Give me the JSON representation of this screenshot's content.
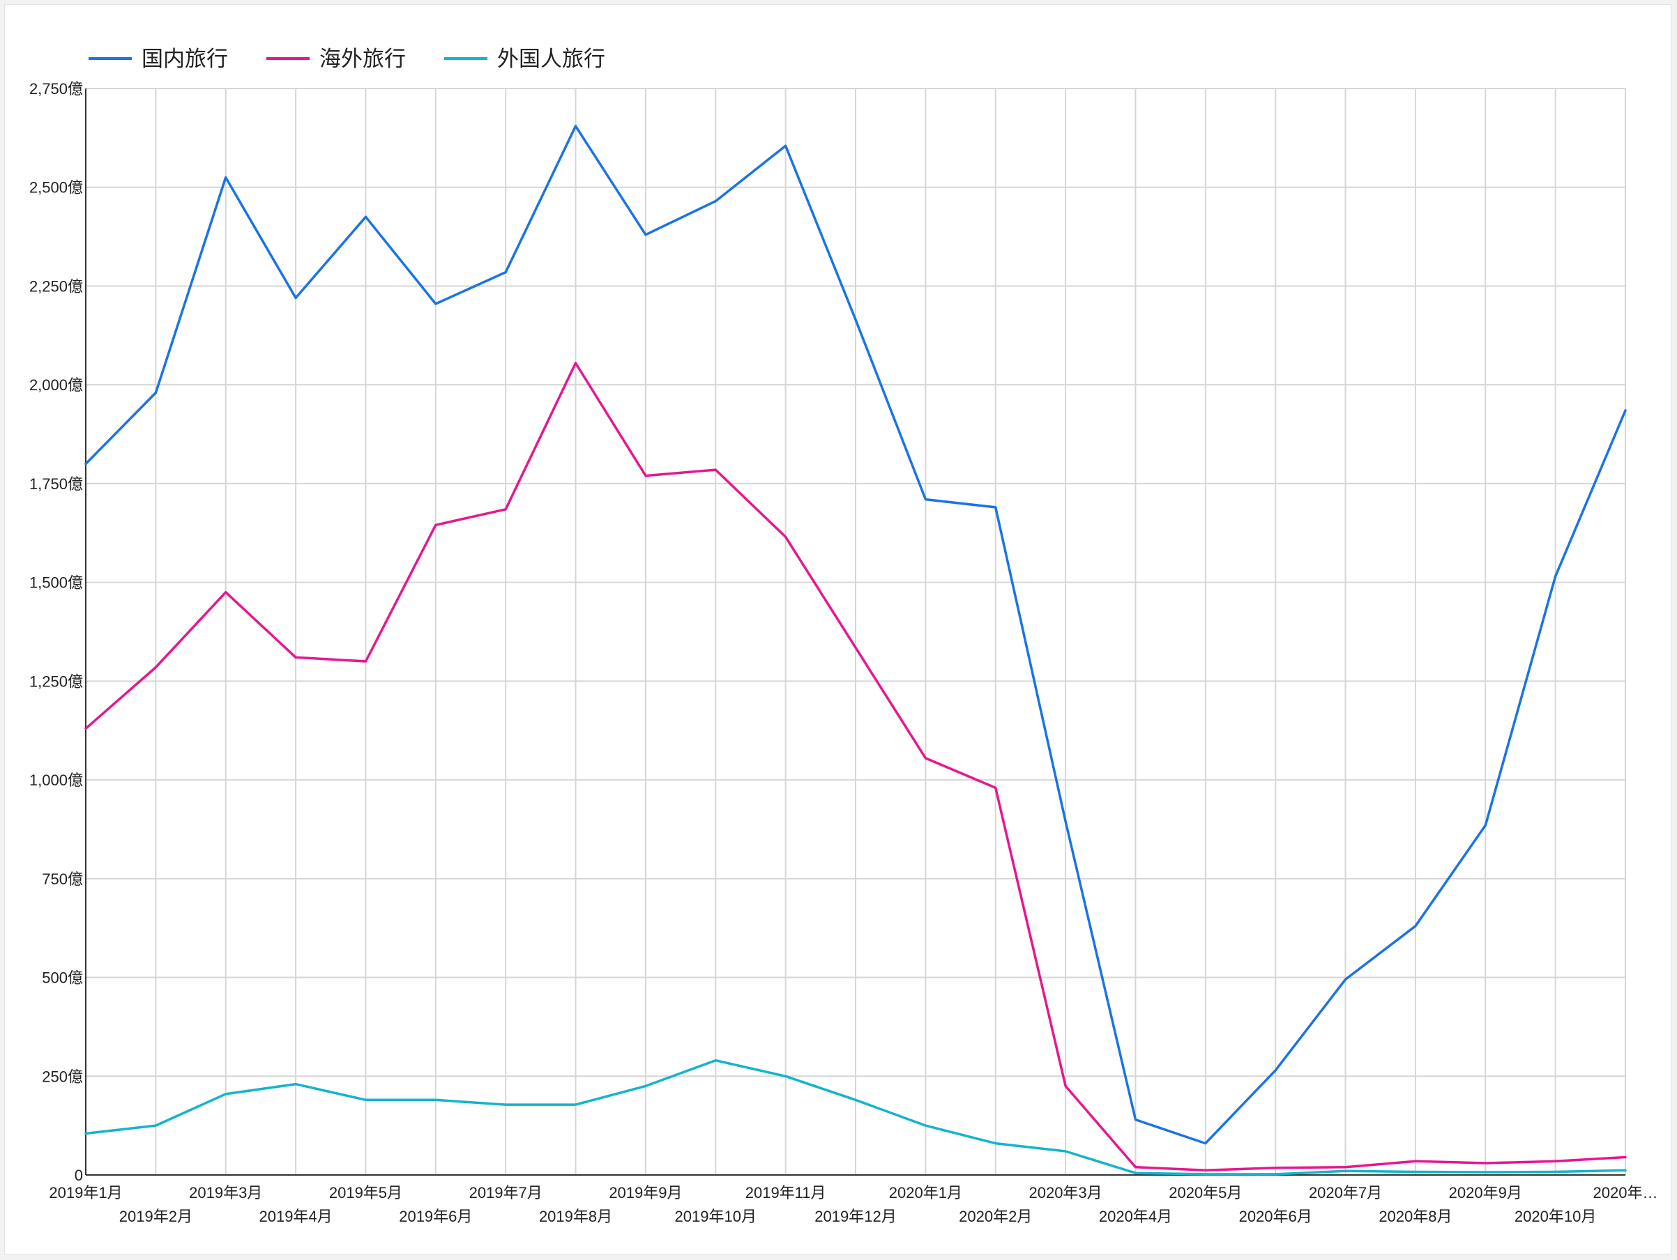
{
  "chart_data": {
    "type": "line",
    "title": "",
    "xlabel": "",
    "ylabel": "",
    "y_unit_suffix": "億",
    "ylim": [
      0,
      2750
    ],
    "y_ticks": [
      0,
      250,
      500,
      750,
      1000,
      1250,
      1500,
      1750,
      2000,
      2250,
      2500,
      2750
    ],
    "y_tick_labels": [
      "0",
      "250億",
      "500億",
      "750億",
      "1,000億",
      "1,250億",
      "1,500億",
      "1,750億",
      "2,000億",
      "2,250億",
      "2,500億",
      "2,750億"
    ],
    "grid": true,
    "legend_position": "top-left",
    "categories": [
      "2019年1月",
      "2019年2月",
      "2019年3月",
      "2019年4月",
      "2019年5月",
      "2019年6月",
      "2019年7月",
      "2019年8月",
      "2019年9月",
      "2019年10月",
      "2019年11月",
      "2019年12月",
      "2020年1月",
      "2020年2月",
      "2020年3月",
      "2020年4月",
      "2020年5月",
      "2020年6月",
      "2020年7月",
      "2020年8月",
      "2020年9月",
      "2020年10月",
      "2020年…"
    ],
    "series": [
      {
        "name": "国内旅行",
        "color": "#1a73e8",
        "values": [
          1800,
          1980,
          2525,
          2220,
          2425,
          2205,
          2285,
          2655,
          2380,
          2465,
          2605,
          2165,
          1710,
          1690,
          895,
          140,
          80,
          265,
          495,
          630,
          885,
          1515,
          1935
        ]
      },
      {
        "name": "海外旅行",
        "color": "#e8168f",
        "values": [
          1130,
          1285,
          1475,
          1310,
          1300,
          1645,
          1685,
          2055,
          1770,
          1785,
          1615,
          1335,
          1055,
          980,
          225,
          20,
          12,
          18,
          20,
          35,
          30,
          35,
          45
        ]
      },
      {
        "name": "外国人旅行",
        "color": "#12b5cb",
        "values": [
          105,
          125,
          205,
          230,
          190,
          190,
          178,
          178,
          225,
          290,
          250,
          190,
          125,
          80,
          60,
          5,
          2,
          2,
          10,
          8,
          7,
          8,
          12
        ]
      }
    ]
  }
}
